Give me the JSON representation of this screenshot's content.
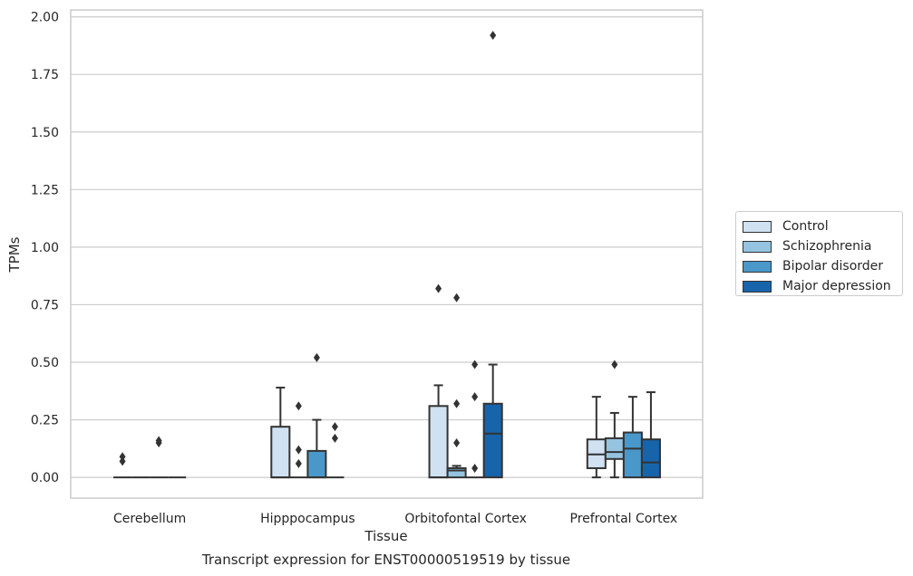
{
  "chart_data": {
    "type": "box",
    "title": "",
    "caption": "Transcript expression for ENST00000519519 by tissue",
    "xlabel": "Tissue",
    "ylabel": "TPMs",
    "ylim": [
      -0.09,
      2.03
    ],
    "yticks": [
      "0.00",
      "0.25",
      "0.50",
      "0.75",
      "1.00",
      "1.25",
      "1.50",
      "1.75",
      "2.00"
    ],
    "grid": true,
    "legend_position": "right",
    "categories": [
      "Cerebellum",
      "Hipppocampus",
      "Orbitofontal Cortex",
      "Prefrontal Cortex"
    ],
    "series": [
      {
        "name": "Control",
        "color": "#d0e1f2",
        "boxes": [
          {
            "q1": 0,
            "median": 0,
            "q3": 0,
            "whislo": 0,
            "whishi": 0,
            "fliers": [
              0.07,
              0.09
            ]
          },
          {
            "q1": 0,
            "median": 0,
            "q3": 0.22,
            "whislo": 0,
            "whishi": 0.39,
            "fliers": []
          },
          {
            "q1": 0,
            "median": 0,
            "q3": 0.31,
            "whislo": 0,
            "whishi": 0.4,
            "fliers": [
              0.82
            ]
          },
          {
            "q1": 0.04,
            "median": 0.1,
            "q3": 0.165,
            "whislo": 0,
            "whishi": 0.35,
            "fliers": []
          }
        ]
      },
      {
        "name": "Schizophrenia",
        "color": "#94c4df",
        "boxes": [
          {
            "q1": 0,
            "median": 0,
            "q3": 0,
            "whislo": 0,
            "whishi": 0,
            "fliers": []
          },
          {
            "q1": 0,
            "median": 0,
            "q3": 0,
            "whislo": 0,
            "whishi": 0,
            "fliers": [
              0.06,
              0.12,
              0.31
            ]
          },
          {
            "q1": 0,
            "median": 0.03,
            "q3": 0.04,
            "whislo": 0,
            "whishi": 0.05,
            "fliers": [
              0.15,
              0.32,
              0.78
            ]
          },
          {
            "q1": 0.08,
            "median": 0.11,
            "q3": 0.17,
            "whislo": 0,
            "whishi": 0.28,
            "fliers": [
              0.49
            ]
          }
        ]
      },
      {
        "name": "Bipolar disorder",
        "color": "#4a98c9",
        "boxes": [
          {
            "q1": 0,
            "median": 0,
            "q3": 0,
            "whislo": 0,
            "whishi": 0,
            "fliers": [
              0.15,
              0.16
            ]
          },
          {
            "q1": 0,
            "median": 0,
            "q3": 0.115,
            "whislo": 0,
            "whishi": 0.25,
            "fliers": [
              0.52
            ]
          },
          {
            "q1": 0,
            "median": 0,
            "q3": 0,
            "whislo": 0,
            "whishi": 0,
            "fliers": [
              0.04,
              0.35,
              0.49
            ]
          },
          {
            "q1": 0,
            "median": 0.125,
            "q3": 0.195,
            "whislo": 0,
            "whishi": 0.35,
            "fliers": []
          }
        ]
      },
      {
        "name": "Major depression",
        "color": "#1764ab",
        "boxes": [
          {
            "q1": 0,
            "median": 0,
            "q3": 0,
            "whislo": 0,
            "whishi": 0,
            "fliers": []
          },
          {
            "q1": 0,
            "median": 0,
            "q3": 0,
            "whislo": 0,
            "whishi": 0,
            "fliers": [
              0.17,
              0.22
            ]
          },
          {
            "q1": 0,
            "median": 0.19,
            "q3": 0.32,
            "whislo": 0,
            "whishi": 0.49,
            "fliers": [
              1.92
            ]
          },
          {
            "q1": 0,
            "median": 0.065,
            "q3": 0.165,
            "whislo": 0,
            "whishi": 0.37,
            "fliers": []
          }
        ]
      }
    ]
  }
}
